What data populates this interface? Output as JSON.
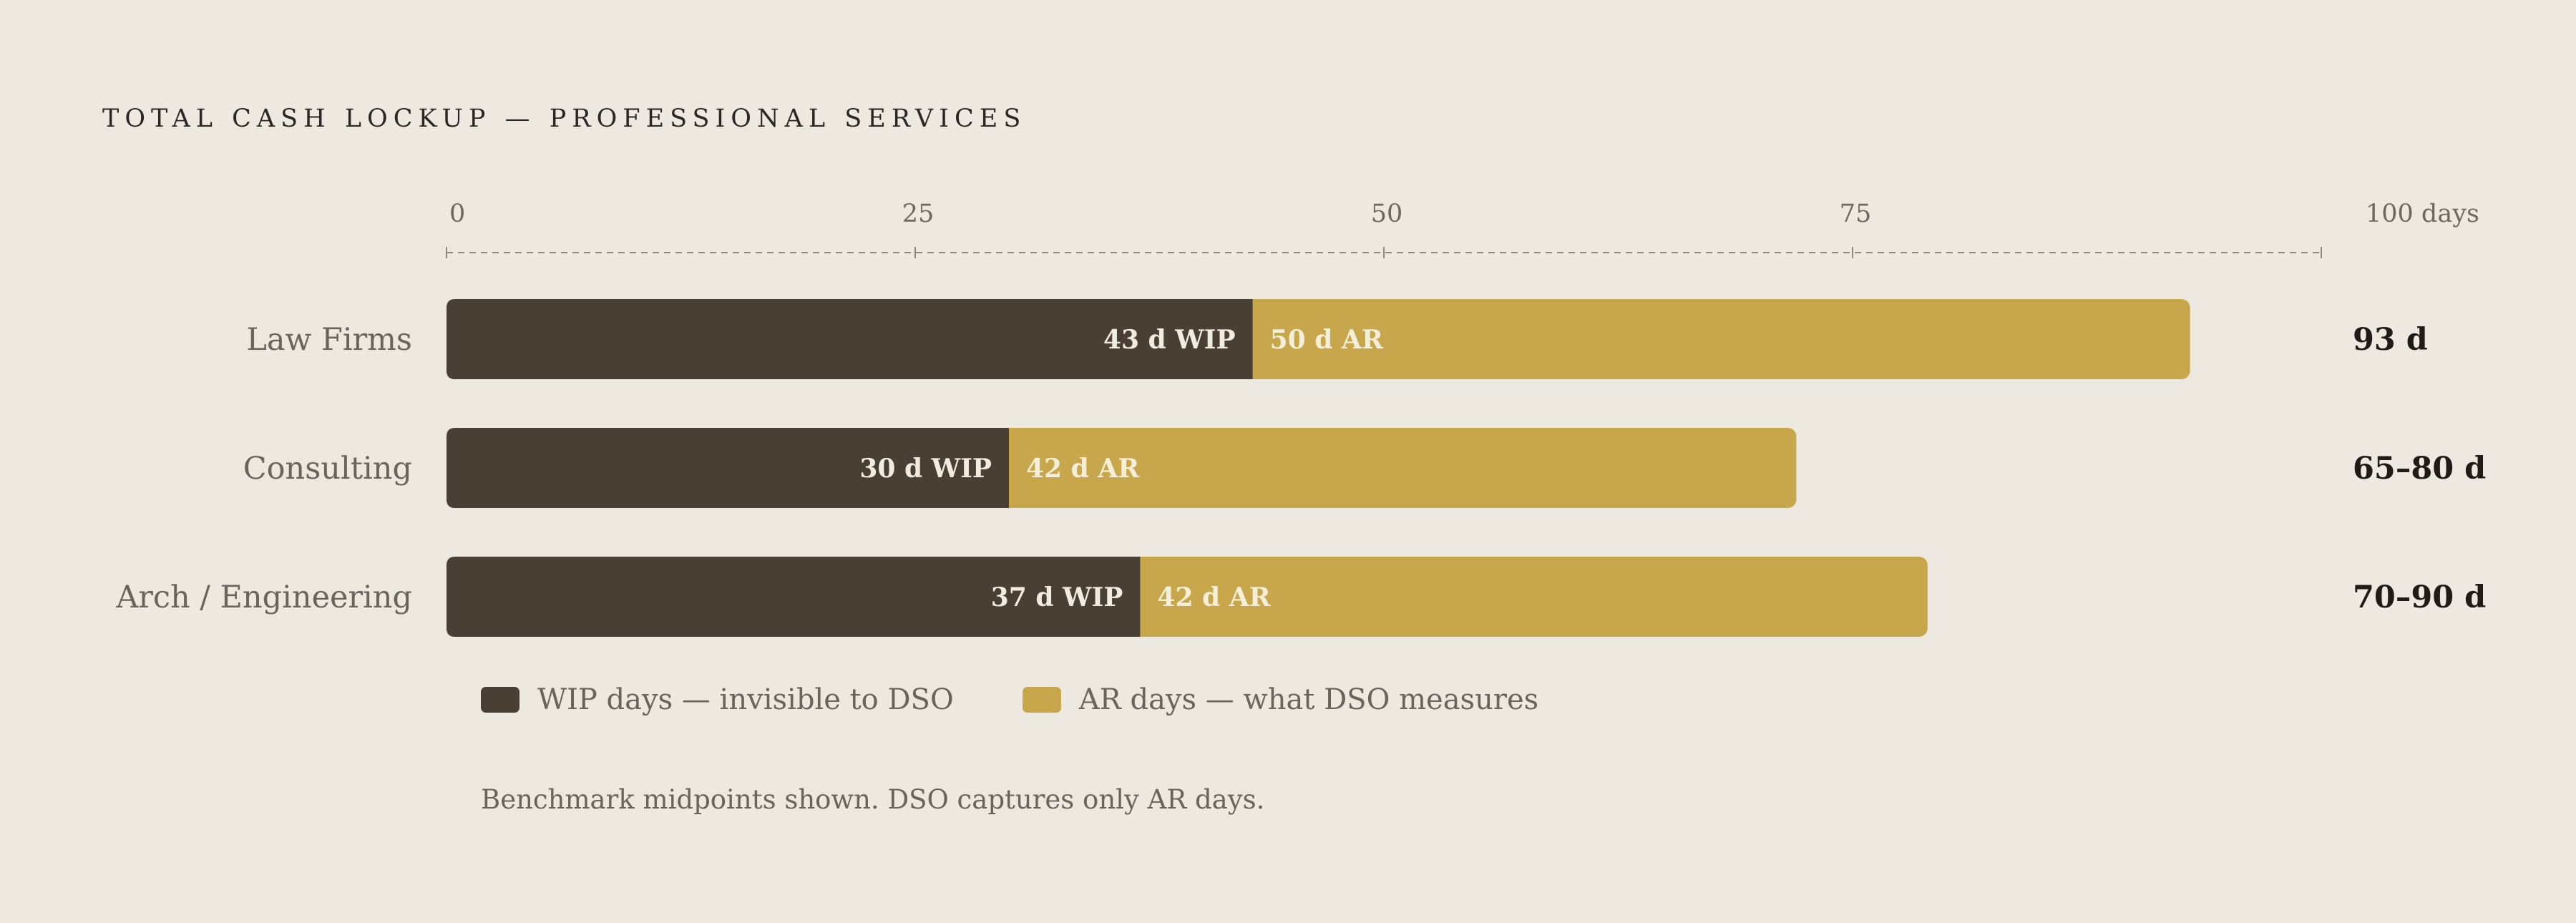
{
  "title": "TOTAL CASH LOCKUP — PROFESSIONAL SERVICES",
  "colors": {
    "wip": "#4a3f35",
    "ar": "#c8a74c",
    "wip_text": "#f1ece2",
    "ar_text": "#f5eed8"
  },
  "legend": [
    {
      "label": "WIP days — invisible to DSO",
      "color": "#4a3f35"
    },
    {
      "label": "AR days — what DSO measures",
      "color": "#c8a74c"
    }
  ],
  "note": "Benchmark midpoints shown. DSO captures only AR days.",
  "chart_data": {
    "type": "bar",
    "orientation": "horizontal",
    "stacked": true,
    "title": "TOTAL CASH LOCKUP — PROFESSIONAL SERVICES",
    "categories": [
      "Law Firms",
      "Consulting",
      "Arch / Engineering"
    ],
    "series": [
      {
        "name": "WIP days — invisible to DSO",
        "values": [
          43,
          30,
          37
        ],
        "labels": [
          "43 d WIP",
          "30 d WIP",
          "37 d WIP"
        ]
      },
      {
        "name": "AR days — what DSO measures",
        "values": [
          50,
          42,
          42
        ],
        "labels": [
          "50 d AR",
          "42 d AR",
          "42 d AR"
        ]
      }
    ],
    "totals": [
      "93 d",
      "65–80 d",
      "70–90 d"
    ],
    "xlim": [
      0,
      100
    ],
    "xticks": [
      0,
      25,
      50,
      75,
      100
    ],
    "xtick_labels": [
      "0",
      "25",
      "50",
      "75",
      "100 days"
    ],
    "axis_position": "top"
  }
}
